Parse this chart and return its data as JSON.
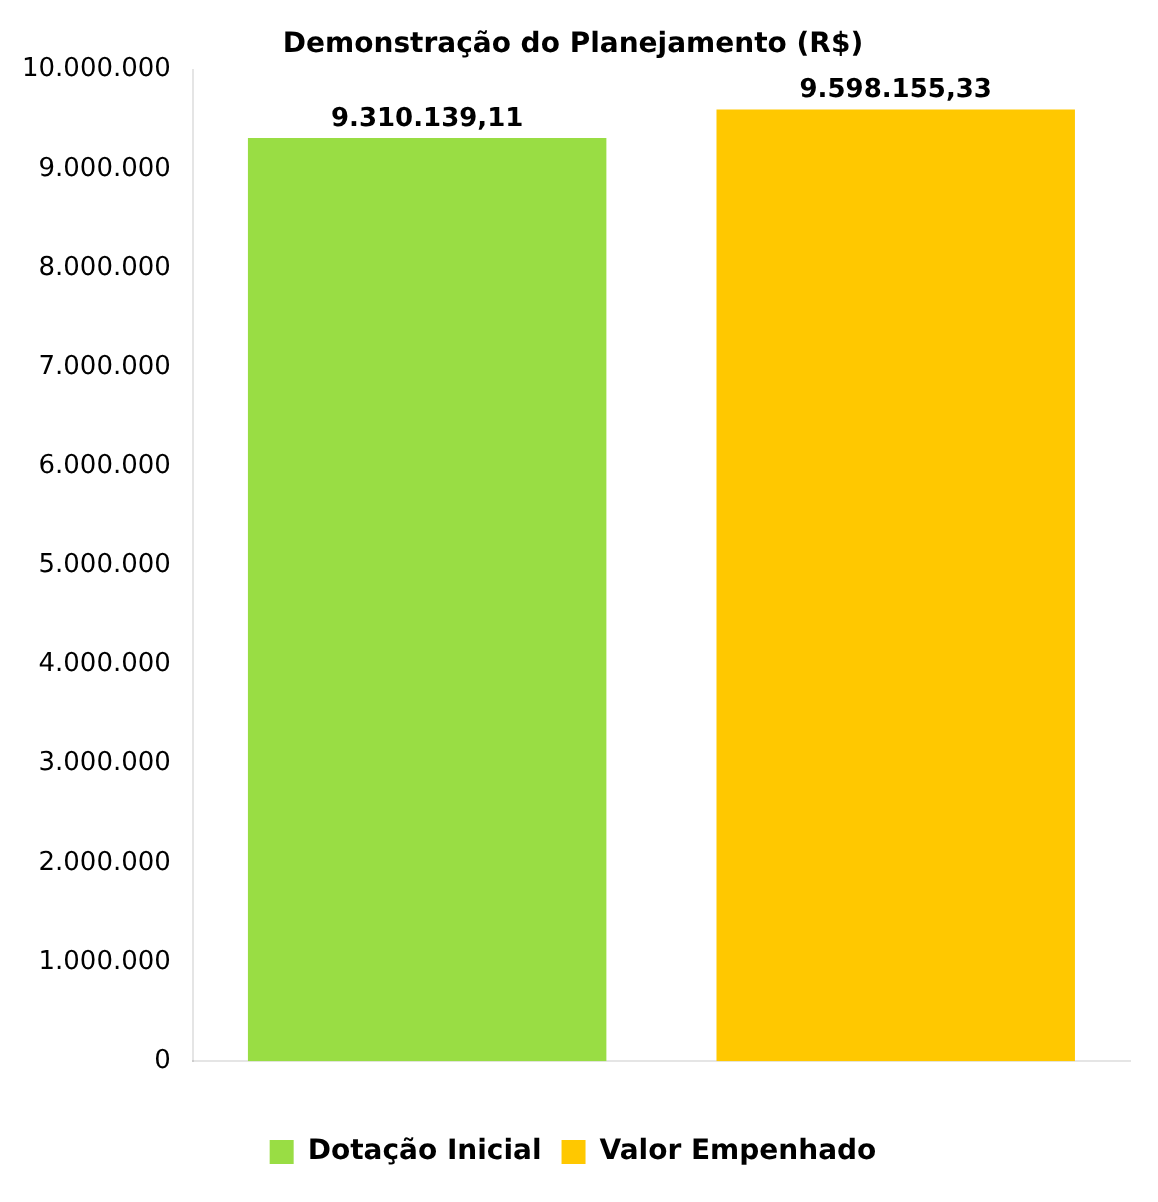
{
  "chart_data": {
    "type": "bar",
    "title": "Demonstração do Planejamento (R$)",
    "categories": [
      null,
      null
    ],
    "series": [
      {
        "name": "Dotação Inicial",
        "color": "#99dd44",
        "values": [
          9310139.11,
          null
        ],
        "value_labels": [
          "9.310.139,11",
          null
        ]
      },
      {
        "name": "Valor Empenhado",
        "color": "#ffc800",
        "values": [
          null,
          9598155.33
        ],
        "value_labels": [
          null,
          "9.598.155,33"
        ]
      }
    ],
    "ylim": [
      0,
      10000000
    ],
    "yticks": [
      {
        "value": 0,
        "label": "0"
      },
      {
        "value": 1000000,
        "label": "1.000.000"
      },
      {
        "value": 2000000,
        "label": "2.000.000"
      },
      {
        "value": 3000000,
        "label": "3.000.000"
      },
      {
        "value": 4000000,
        "label": "4.000.000"
      },
      {
        "value": 5000000,
        "label": "5.000.000"
      },
      {
        "value": 6000000,
        "label": "6.000.000"
      },
      {
        "value": 7000000,
        "label": "7.000.000"
      },
      {
        "value": 8000000,
        "label": "8.000.000"
      },
      {
        "value": 9000000,
        "label": "9.000.000"
      },
      {
        "value": 10000000,
        "label": "10.000.000"
      }
    ],
    "grid": false,
    "legend": "bottom"
  }
}
